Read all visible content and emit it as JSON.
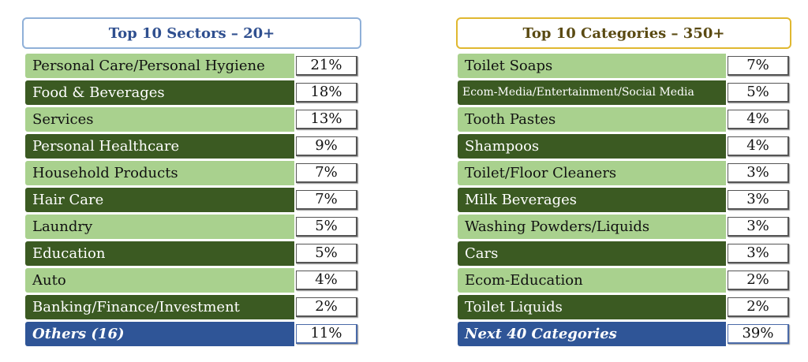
{
  "sectors": {
    "title": "Top 10 Sectors – 20+",
    "rows": [
      {
        "label": "Personal Care/Personal Hygiene",
        "value": "21%",
        "style": "light"
      },
      {
        "label": "Food & Beverages",
        "value": "18%",
        "style": "dark"
      },
      {
        "label": "Services",
        "value": "13%",
        "style": "light"
      },
      {
        "label": "Personal Healthcare",
        "value": "9%",
        "style": "dark"
      },
      {
        "label": "Household Products",
        "value": "7%",
        "style": "light"
      },
      {
        "label": "Hair Care",
        "value": "7%",
        "style": "dark"
      },
      {
        "label": "Laundry",
        "value": "5%",
        "style": "light"
      },
      {
        "label": "Education",
        "value": "5%",
        "style": "dark"
      },
      {
        "label": "Auto",
        "value": "4%",
        "style": "light"
      },
      {
        "label": "Banking/Finance/Investment",
        "value": "2%",
        "style": "dark"
      },
      {
        "label": "Others (16)",
        "value": "11%",
        "style": "blue"
      }
    ]
  },
  "categories": {
    "title": "Top 10 Categories – 350+",
    "rows": [
      {
        "label": "Toilet Soaps",
        "value": "7%",
        "style": "light"
      },
      {
        "label": "Ecom-Media/Entertainment/Social Media",
        "value": "5%",
        "style": "dark small"
      },
      {
        "label": "Tooth Pastes",
        "value": "4%",
        "style": "light"
      },
      {
        "label": "Shampoos",
        "value": "4%",
        "style": "dark"
      },
      {
        "label": "Toilet/Floor Cleaners",
        "value": "3%",
        "style": "light"
      },
      {
        "label": "Milk Beverages",
        "value": "3%",
        "style": "dark"
      },
      {
        "label": "Washing Powders/Liquids",
        "value": "3%",
        "style": "light"
      },
      {
        "label": "Cars",
        "value": "3%",
        "style": "dark"
      },
      {
        "label": "Ecom-Education",
        "value": "2%",
        "style": "light"
      },
      {
        "label": "Toilet Liquids",
        "value": "2%",
        "style": "dark"
      },
      {
        "label": "Next 40 Categories",
        "value": "39%",
        "style": "blue"
      }
    ]
  }
}
